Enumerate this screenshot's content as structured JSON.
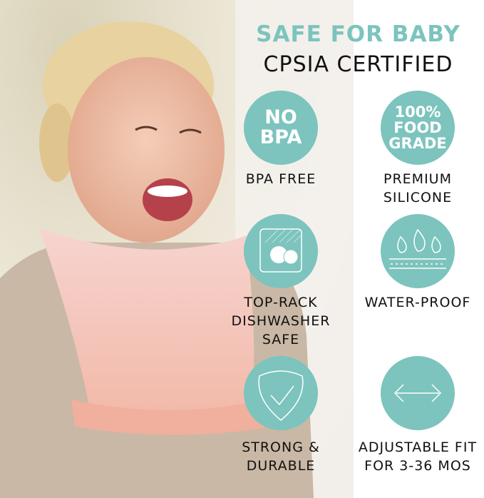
{
  "header": {
    "title": "SAFE FOR BABY",
    "subtitle": "CPSIA CERTIFIED"
  },
  "accent_color": "#7cc4bd",
  "features": [
    {
      "icon": "no-bpa-badge",
      "icon_text": [
        "NO",
        "BPA"
      ],
      "label": [
        "BPA FREE"
      ]
    },
    {
      "icon": "food-grade-badge",
      "icon_text": [
        "100%",
        "FOOD",
        "GRADE"
      ],
      "label": [
        "PREMIUM",
        "SILICONE"
      ]
    },
    {
      "icon": "dishwasher-icon",
      "label": [
        "TOP-RACK",
        "DISHWASHER",
        "SAFE"
      ]
    },
    {
      "icon": "water-drops-icon",
      "label": [
        "WATER-PROOF"
      ]
    },
    {
      "icon": "shield-check-icon",
      "label": [
        "STRONG &",
        "DURABLE"
      ]
    },
    {
      "icon": "double-arrow-icon",
      "label": [
        "ADJUSTABLE FIT",
        "FOR 3-36 MOS"
      ]
    }
  ]
}
